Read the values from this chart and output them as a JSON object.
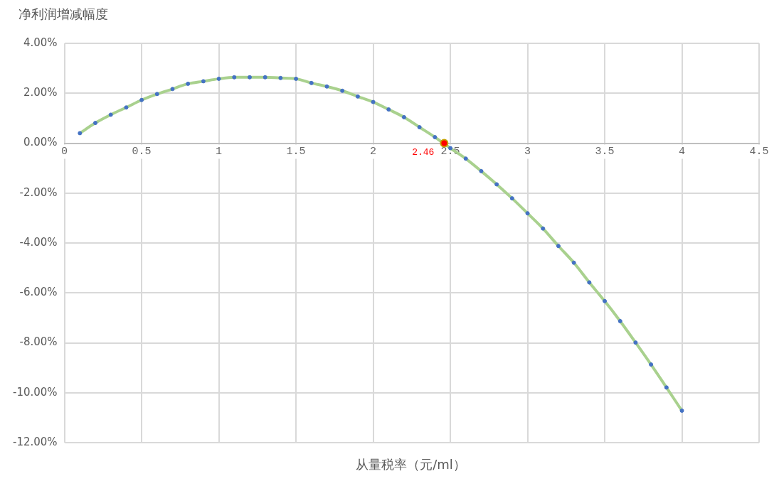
{
  "chart_data": {
    "type": "line",
    "ylabel": "净利润增减幅度",
    "xlabel": "从量税率（元/ml）",
    "x": [
      0.1,
      0.2,
      0.3,
      0.4,
      0.5,
      0.6,
      0.7,
      0.8,
      0.9,
      1.0,
      1.1,
      1.2,
      1.3,
      1.4,
      1.5,
      1.6,
      1.7,
      1.8,
      1.9,
      2.0,
      2.1,
      2.2,
      2.3,
      2.4,
      2.5,
      2.6,
      2.7,
      2.8,
      2.9,
      3.0,
      3.1,
      3.2,
      3.3,
      3.4,
      3.5,
      3.6,
      3.7,
      3.8,
      3.9,
      4.0
    ],
    "series": [
      {
        "type": "line",
        "color": "#a9d18e",
        "marker": "none",
        "line_style": "solid",
        "values": [
          0.4,
          0.81,
          1.14,
          1.43,
          1.73,
          1.97,
          2.17,
          2.38,
          2.48,
          2.58,
          2.64,
          2.64,
          2.64,
          2.61,
          2.58,
          2.41,
          2.27,
          2.1,
          1.87,
          1.65,
          1.35,
          1.04,
          0.64,
          0.24,
          -0.2,
          -0.62,
          -1.12,
          -1.65,
          -2.21,
          -2.81,
          -3.42,
          -4.12,
          -4.79,
          -5.58,
          -6.33,
          -7.13,
          -7.99,
          -8.87,
          -9.79,
          -10.72
        ]
      },
      {
        "type": "scatter",
        "color": "#4472c4",
        "marker": "circle",
        "values": [
          0.4,
          0.81,
          1.14,
          1.43,
          1.73,
          1.97,
          2.17,
          2.38,
          2.48,
          2.58,
          2.64,
          2.64,
          2.64,
          2.61,
          2.58,
          2.41,
          2.27,
          2.1,
          1.87,
          1.65,
          1.35,
          1.04,
          0.64,
          0.24,
          -0.2,
          -0.62,
          -1.12,
          -1.65,
          -2.21,
          -2.81,
          -3.42,
          -4.12,
          -4.79,
          -5.58,
          -6.33,
          -7.13,
          -7.99,
          -8.87,
          -9.79,
          -10.72
        ]
      },
      {
        "type": "scatter",
        "color": "#ff0000",
        "marker": "circle",
        "x": [
          2.46
        ],
        "values": [
          0
        ]
      }
    ],
    "annotations": [
      {
        "text": "2.46",
        "x": 2.46,
        "y": 0
      }
    ],
    "xlim": [
      0,
      4.5
    ],
    "xticks": [
      0,
      0.5,
      1,
      1.5,
      2,
      2.5,
      3,
      3.5,
      4,
      4.5
    ],
    "ylim": [
      -12,
      4
    ],
    "yticks": [
      {
        "value": -12,
        "label": "-12.00%"
      },
      {
        "value": -10,
        "label": "-10.00%"
      },
      {
        "value": -8,
        "label": "-8.00%"
      },
      {
        "value": -6,
        "label": "-6.00%"
      },
      {
        "value": -4,
        "label": "-4.00%"
      },
      {
        "value": -2,
        "label": "-2.00%"
      },
      {
        "value": 0,
        "label": "0.00%"
      },
      {
        "value": 2,
        "label": "2.00%"
      },
      {
        "value": 4,
        "label": "4.00%"
      }
    ],
    "grid": true,
    "legend": false
  }
}
